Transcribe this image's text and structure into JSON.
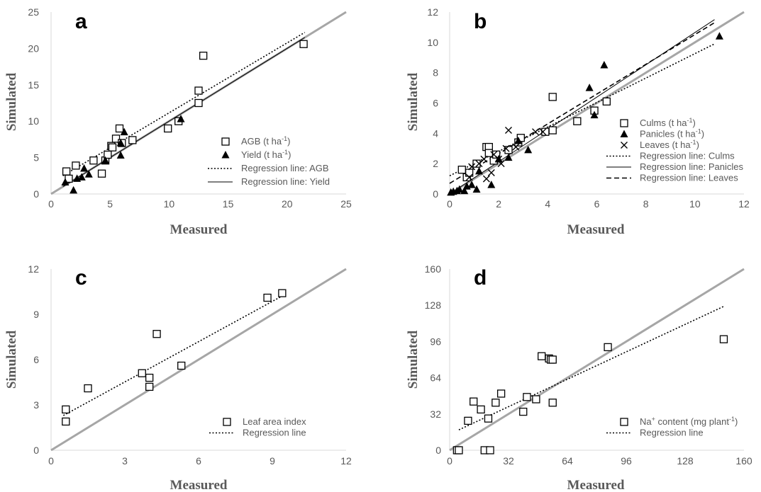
{
  "chart_data": [
    {
      "panel": "a",
      "type": "scatter",
      "xlabel": "Measured",
      "ylabel": "Simulated",
      "xlim": [
        0,
        25
      ],
      "ylim": [
        0,
        25
      ],
      "xticks": [
        0,
        5,
        10,
        15,
        20,
        25
      ],
      "yticks": [
        0,
        5,
        10,
        15,
        20,
        25
      ],
      "legend_position": "right",
      "series": [
        {
          "name": "AGB (t ha",
          "unit_sup": "-1",
          "name_end": ")",
          "marker": "square",
          "points": [
            [
              1.3,
              3.1
            ],
            [
              1.5,
              2.1
            ],
            [
              2.1,
              3.9
            ],
            [
              3.6,
              4.6
            ],
            [
              4.3,
              2.8
            ],
            [
              4.6,
              4.6
            ],
            [
              4.8,
              5.4
            ],
            [
              5.1,
              6.6
            ],
            [
              5.2,
              6.4
            ],
            [
              5.5,
              7.6
            ],
            [
              5.8,
              9.0
            ],
            [
              6.0,
              7.0
            ],
            [
              6.9,
              7.4
            ],
            [
              9.9,
              9.0
            ],
            [
              10.8,
              10.0
            ],
            [
              12.5,
              14.2
            ],
            [
              12.5,
              12.5
            ],
            [
              12.9,
              19.0
            ],
            [
              21.4,
              20.6
            ]
          ]
        },
        {
          "name": "Yield (t ha",
          "unit_sup": "-1",
          "name_end": ")",
          "marker": "triangle",
          "points": [
            [
              1.2,
              1.6
            ],
            [
              1.9,
              0.5
            ],
            [
              2.2,
              2.1
            ],
            [
              2.6,
              2.3
            ],
            [
              2.8,
              3.5
            ],
            [
              3.2,
              2.7
            ],
            [
              4.6,
              4.6
            ],
            [
              5.9,
              5.3
            ],
            [
              6.2,
              8.5
            ],
            [
              5.9,
              7.0
            ],
            [
              11.0,
              10.3
            ]
          ]
        },
        {
          "name": "Regression line: AGB",
          "style": "dotted",
          "line": [
            [
              1.0,
              2.5
            ],
            [
              21.5,
              22.2
            ]
          ]
        },
        {
          "name": "Regression line: Yield",
          "style": "solid",
          "line": [
            [
              1.0,
              1.0
            ],
            [
              21.5,
              21.5
            ]
          ]
        }
      ]
    },
    {
      "panel": "b",
      "type": "scatter",
      "xlabel": "Measured",
      "ylabel": "Simulated",
      "xlim": [
        0,
        12
      ],
      "ylim": [
        0,
        12
      ],
      "xticks": [
        0,
        2,
        4,
        6,
        8,
        10,
        12
      ],
      "yticks": [
        0,
        2,
        4,
        6,
        8,
        10,
        12
      ],
      "legend_position": "right",
      "series": [
        {
          "name": "Culms (t ha",
          "unit_sup": "-1",
          "name_end": ")",
          "marker": "square",
          "points": [
            [
              0.5,
              1.6
            ],
            [
              0.7,
              1.1
            ],
            [
              0.8,
              1.4
            ],
            [
              1.1,
              2.0
            ],
            [
              1.5,
              3.1
            ],
            [
              1.6,
              3.1
            ],
            [
              1.6,
              2.7
            ],
            [
              1.8,
              2.2
            ],
            [
              1.9,
              2.6
            ],
            [
              2.4,
              2.9
            ],
            [
              2.8,
              3.4
            ],
            [
              2.9,
              3.7
            ],
            [
              3.9,
              4.1
            ],
            [
              4.2,
              4.2
            ],
            [
              4.2,
              6.4
            ],
            [
              5.2,
              4.8
            ],
            [
              5.9,
              5.5
            ],
            [
              6.4,
              6.1
            ]
          ]
        },
        {
          "name": "Panicles (t ha",
          "unit_sup": "-1",
          "name_end": ")",
          "marker": "triangle",
          "points": [
            [
              0.05,
              0.1
            ],
            [
              0.15,
              0.15
            ],
            [
              0.3,
              0.2
            ],
            [
              0.4,
              0.3
            ],
            [
              0.6,
              0.2
            ],
            [
              0.7,
              0.5
            ],
            [
              0.9,
              0.6
            ],
            [
              1.1,
              0.3
            ],
            [
              1.2,
              1.5
            ],
            [
              1.7,
              0.6
            ],
            [
              2.0,
              2.3
            ],
            [
              2.4,
              2.4
            ],
            [
              2.8,
              3.5
            ],
            [
              3.2,
              2.9
            ],
            [
              5.7,
              7.0
            ],
            [
              5.9,
              5.2
            ],
            [
              6.3,
              8.5
            ],
            [
              11.0,
              10.4
            ]
          ]
        },
        {
          "name": "Leaves (t ha",
          "unit_sup": "-1",
          "name_end": ")",
          "marker": "cross",
          "points": [
            [
              0.8,
              1.1
            ],
            [
              0.9,
              1.8
            ],
            [
              1.2,
              2.0
            ],
            [
              1.4,
              2.3
            ],
            [
              1.5,
              1.0
            ],
            [
              1.7,
              1.4
            ],
            [
              1.8,
              2.6
            ],
            [
              2.0,
              2.3
            ],
            [
              2.1,
              2.0
            ],
            [
              2.3,
              3.0
            ],
            [
              2.4,
              4.2
            ],
            [
              2.7,
              3.1
            ],
            [
              3.5,
              4.1
            ],
            [
              3.8,
              4.1
            ]
          ]
        },
        {
          "name": "Regression line: Culms",
          "style": "dotted",
          "line": [
            [
              0,
              1.2
            ],
            [
              10.8,
              9.9
            ]
          ]
        },
        {
          "name": "Regression line: Panicles",
          "style": "solid",
          "line": [
            [
              0,
              0
            ],
            [
              10.8,
              11.5
            ]
          ]
        },
        {
          "name": "Regression line: Leaves",
          "style": "dashed",
          "line": [
            [
              0,
              0.7
            ],
            [
              10.8,
              11.3
            ]
          ]
        }
      ]
    },
    {
      "panel": "c",
      "type": "scatter",
      "xlabel": "Measured",
      "ylabel": "Simulated",
      "xlim": [
        0,
        12
      ],
      "ylim": [
        0,
        12
      ],
      "xticks": [
        0,
        3,
        6,
        9,
        12
      ],
      "yticks": [
        0,
        3,
        6,
        9,
        12
      ],
      "legend_position": "bottom-right",
      "series": [
        {
          "name": "Leaf area index",
          "marker": "square",
          "points": [
            [
              0.6,
              2.7
            ],
            [
              0.6,
              1.9
            ],
            [
              1.5,
              4.1
            ],
            [
              3.7,
              5.1
            ],
            [
              4.0,
              4.8
            ],
            [
              4.0,
              4.2
            ],
            [
              4.3,
              7.7
            ],
            [
              5.3,
              5.6
            ],
            [
              8.8,
              10.1
            ],
            [
              9.4,
              10.4
            ]
          ]
        },
        {
          "name": "Regression line",
          "style": "dotted",
          "line": [
            [
              0.5,
              2.3
            ],
            [
              9.5,
              10.3
            ]
          ]
        }
      ]
    },
    {
      "panel": "d",
      "type": "scatter",
      "xlabel": "Measured",
      "ylabel": "Simulated",
      "xlim": [
        0,
        160
      ],
      "ylim": [
        0,
        160
      ],
      "xticks": [
        0,
        32,
        64,
        96,
        128,
        160
      ],
      "yticks": [
        0,
        32,
        64,
        96,
        128,
        160
      ],
      "legend_position": "bottom-right",
      "series": [
        {
          "name": "Na",
          "name_sup": "+",
          "name_mid": " content (mg plant",
          "unit_sup": "-1",
          "name_end": ")",
          "marker": "square",
          "points": [
            [
              4,
              0
            ],
            [
              5,
              0
            ],
            [
              19,
              0
            ],
            [
              22,
              0
            ],
            [
              10,
              26
            ],
            [
              13,
              43
            ],
            [
              17,
              36
            ],
            [
              21,
              28
            ],
            [
              25,
              42
            ],
            [
              28,
              50
            ],
            [
              40,
              34
            ],
            [
              42,
              47
            ],
            [
              47,
              45
            ],
            [
              50,
              83
            ],
            [
              54,
              81
            ],
            [
              55,
              80
            ],
            [
              56,
              80
            ],
            [
              56,
              42
            ],
            [
              86,
              91
            ],
            [
              149,
              98
            ]
          ]
        },
        {
          "name": "Regression line",
          "style": "dotted",
          "line": [
            [
              5,
              18
            ],
            [
              149,
              127
            ]
          ]
        }
      ]
    }
  ]
}
